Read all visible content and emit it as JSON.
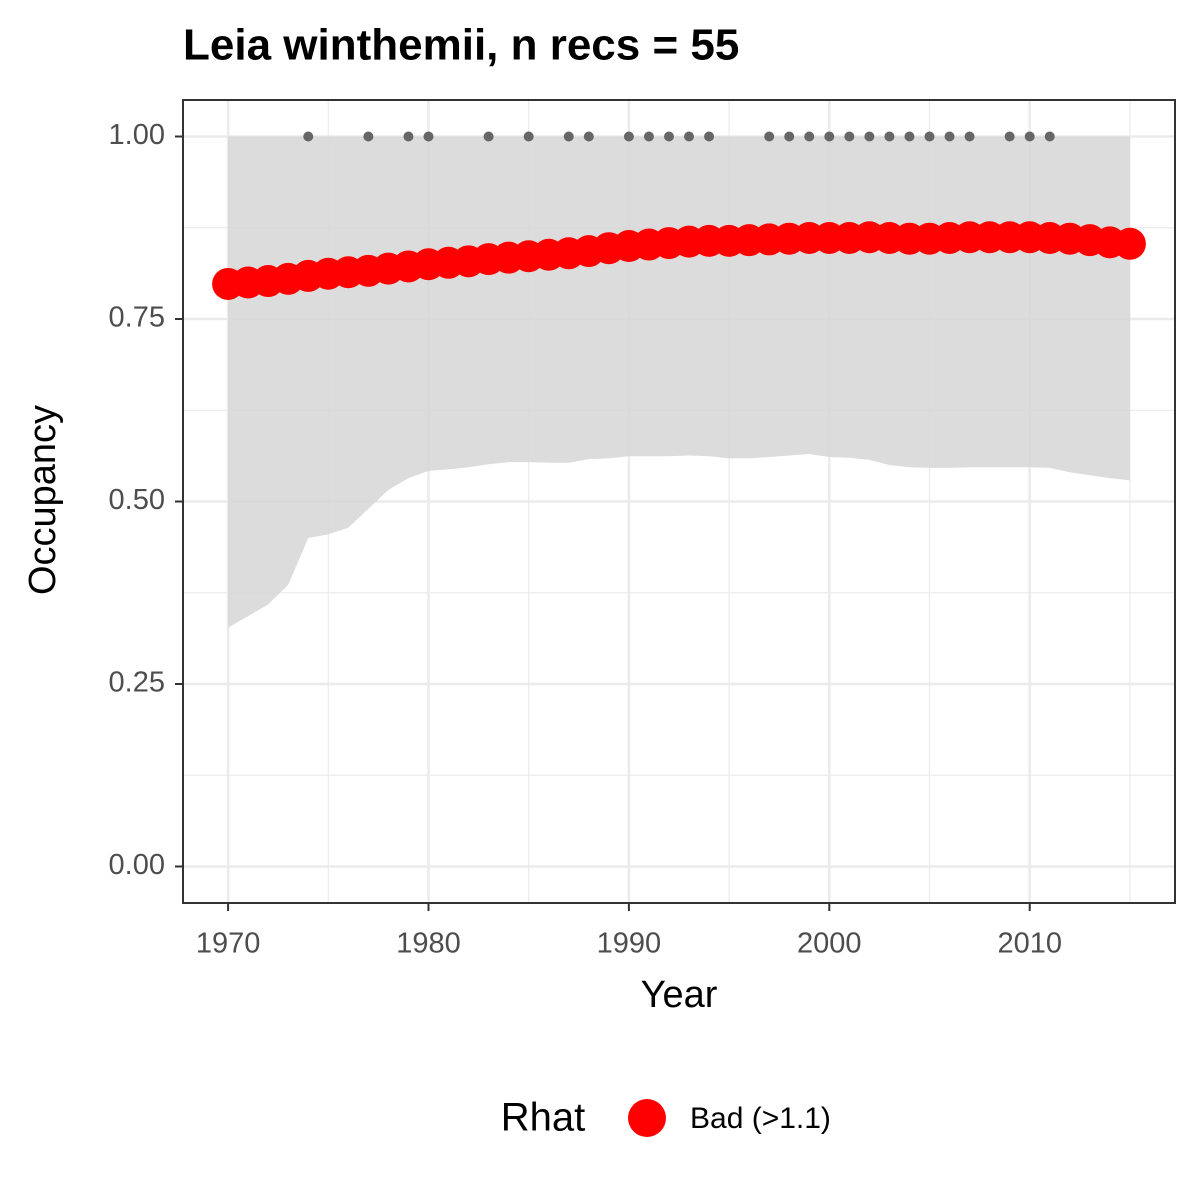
{
  "chart_data": {
    "type": "trend",
    "title": "Leia winthemii, n recs = 55",
    "x_label": "Year",
    "y_label": "Occupancy",
    "legend_title": "Rhat",
    "legend_position": "bottom",
    "grid": true,
    "x": [
      1970,
      1971,
      1972,
      1973,
      1974,
      1975,
      1976,
      1977,
      1978,
      1979,
      1980,
      1981,
      1982,
      1983,
      1984,
      1985,
      1986,
      1987,
      1988,
      1989,
      1990,
      1991,
      1992,
      1993,
      1994,
      1995,
      1996,
      1997,
      1998,
      1999,
      2000,
      2001,
      2002,
      2003,
      2004,
      2005,
      2006,
      2007,
      2008,
      2009,
      2010,
      2011,
      2012,
      2013,
      2014,
      2015
    ],
    "series": [
      {
        "name": "Bad (>1.1)",
        "color": "#ff0000",
        "values": [
          0.798,
          0.8,
          0.802,
          0.805,
          0.809,
          0.812,
          0.814,
          0.816,
          0.819,
          0.822,
          0.825,
          0.827,
          0.829,
          0.832,
          0.834,
          0.836,
          0.838,
          0.84,
          0.843,
          0.847,
          0.85,
          0.852,
          0.854,
          0.856,
          0.857,
          0.857,
          0.858,
          0.859,
          0.86,
          0.861,
          0.861,
          0.861,
          0.862,
          0.861,
          0.86,
          0.86,
          0.861,
          0.862,
          0.862,
          0.862,
          0.862,
          0.861,
          0.86,
          0.858,
          0.855,
          0.853
        ]
      }
    ],
    "band": {
      "color": "#d6d6d6",
      "upper": [
        1,
        1,
        1,
        1,
        1,
        1,
        1,
        1,
        1,
        1,
        1,
        1,
        1,
        1,
        1,
        1,
        1,
        1,
        1,
        1,
        1,
        1,
        1,
        1,
        1,
        1,
        1,
        1,
        1,
        1,
        1,
        1,
        1,
        1,
        1,
        1,
        1,
        1,
        1,
        1,
        1,
        1,
        1,
        1,
        1,
        1
      ],
      "lower": [
        0.327,
        0.343,
        0.359,
        0.386,
        0.45,
        0.455,
        0.464,
        0.49,
        0.516,
        0.532,
        0.542,
        0.544,
        0.547,
        0.551,
        0.554,
        0.554,
        0.553,
        0.553,
        0.558,
        0.559,
        0.562,
        0.562,
        0.562,
        0.563,
        0.562,
        0.559,
        0.559,
        0.561,
        0.563,
        0.565,
        0.561,
        0.56,
        0.557,
        0.55,
        0.547,
        0.546,
        0.546,
        0.547,
        0.547,
        0.547,
        0.547,
        0.546,
        0.54,
        0.536,
        0.532,
        0.529
      ]
    },
    "records": {
      "color": "#666666",
      "x": [
        1974,
        1977,
        1979,
        1980,
        1983,
        1985,
        1987,
        1988,
        1990,
        1991,
        1992,
        1993,
        1994,
        1997,
        1998,
        1999,
        2000,
        2001,
        2002,
        2003,
        2004,
        2005,
        2006,
        2007,
        2009,
        2010,
        2011
      ],
      "values": [
        1,
        1,
        1,
        1,
        1,
        1,
        1,
        1,
        1,
        1,
        1,
        1,
        1,
        1,
        1,
        1,
        1,
        1,
        1,
        1,
        1,
        1,
        1,
        1,
        1,
        1,
        1
      ]
    },
    "xlim": [
      1967.75,
      2017.25
    ],
    "ylim": [
      -0.05,
      1.05
    ],
    "xticks": [
      1970,
      1980,
      1990,
      2000,
      2010
    ],
    "x_minor_ticks": [
      1975,
      1985,
      1995,
      2005,
      2015
    ],
    "yticks": [
      {
        "value": 0,
        "label": "0.00"
      },
      {
        "value": 0.25,
        "label": "0.25"
      },
      {
        "value": 0.5,
        "label": "0.50"
      },
      {
        "value": 0.75,
        "label": "0.75"
      },
      {
        "value": 1,
        "label": "1.00"
      }
    ],
    "y_minor_ticks": [
      0.125,
      0.375,
      0.625,
      0.875
    ]
  }
}
